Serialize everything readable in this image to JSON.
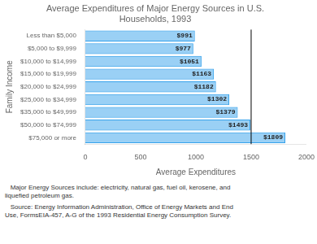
{
  "chart_data": {
    "type": "bar",
    "orientation": "horizontal",
    "title": "Average Expenditures of Major Energy Sources in U.S.\nHouseholds, 1993",
    "categories": [
      "Less than $5,000",
      "$5,000 to $9,999",
      "$10,000 to $14,999",
      "$15,000 to $19,999",
      "$20,000 to $24,999",
      "$25,000 to $34,999",
      "$35,000 to $49,999",
      "$50,000 to $74,999",
      "$75,000 or more"
    ],
    "values": [
      991,
      977,
      1051,
      1163,
      1182,
      1302,
      1379,
      1493,
      1809
    ],
    "value_labels": [
      "$991",
      "$977",
      "$1051",
      "$1163",
      "$1182",
      "$1302",
      "$1379",
      "$1493",
      "$1809"
    ],
    "data_labels": true,
    "xlabel": "Average Expenditures",
    "ylabel": "Family Income",
    "xlim": [
      0,
      2000
    ],
    "xticks": [
      0,
      500,
      1000,
      1500,
      2000
    ],
    "grid": false,
    "vline_x": 1500,
    "footnotes": [
      "   Major Energy Sources include: electricity, natural gas, fuel oil, kerosene, and\nliquefied petroleum gas.",
      "   Source: Energy Information Administration, Office of Energy Markets and End\nUse, FormsEIA-457, A-G of the 1993 Residential Energy Consumption Survey."
    ]
  }
}
